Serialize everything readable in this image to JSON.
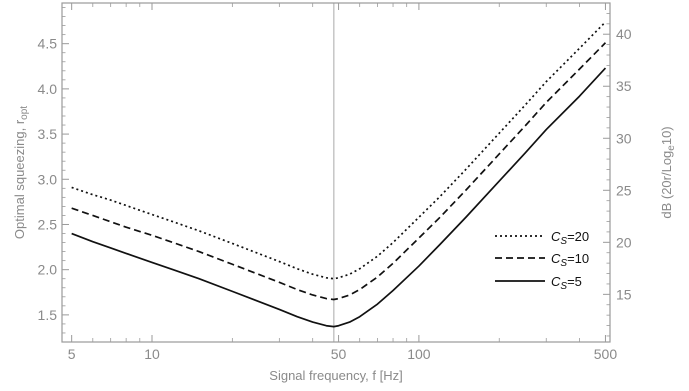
{
  "chart_data": {
    "type": "line",
    "xlabel": "Signal frequency, f [Hz]",
    "ylabel": "Optimal squeezing, r",
    "ylabel_sub": "opt",
    "y2label": "dB (20r/Log",
    "y2label_sub": "e",
    "y2label_tail": "10)",
    "x_scale": "log",
    "xlim": [
      4.6,
      520
    ],
    "ylim": [
      1.2,
      4.95
    ],
    "y2lim": [
      10.42,
      43.0
    ],
    "x_ticks": [
      5,
      10,
      50,
      100,
      500
    ],
    "x_tick_labels": [
      "5",
      "10",
      "50",
      "100",
      "500"
    ],
    "y_ticks": [
      1.5,
      2.0,
      2.5,
      3.0,
      3.5,
      4.0,
      4.5
    ],
    "y_tick_labels": [
      "1.5",
      "2.0",
      "2.5",
      "3.0",
      "3.5",
      "4.0",
      "4.5"
    ],
    "y2_ticks": [
      15,
      20,
      25,
      30,
      35,
      40
    ],
    "y2_tick_labels": [
      "15",
      "20",
      "25",
      "30",
      "35",
      "40"
    ],
    "vline_x": 48,
    "legend_position": "right",
    "series": [
      {
        "name": "C_S=20",
        "label_main": "C",
        "label_sub": "S",
        "label_val": "=20",
        "dash": "dotted",
        "x": [
          5,
          6,
          7,
          8,
          10,
          12,
          15,
          20,
          25,
          30,
          35,
          40,
          45,
          48,
          50,
          55,
          60,
          70,
          80,
          100,
          120,
          150,
          200,
          250,
          300,
          400,
          500
        ],
        "y": [
          2.91,
          2.83,
          2.77,
          2.71,
          2.61,
          2.53,
          2.43,
          2.29,
          2.18,
          2.09,
          2.01,
          1.95,
          1.91,
          1.9,
          1.91,
          1.95,
          2.01,
          2.15,
          2.3,
          2.58,
          2.81,
          3.11,
          3.51,
          3.82,
          4.08,
          4.45,
          4.74
        ]
      },
      {
        "name": "C_S=10",
        "label_main": "C",
        "label_sub": "S",
        "label_val": "=10",
        "dash": "dashed",
        "x": [
          5,
          6,
          7,
          8,
          10,
          12,
          15,
          20,
          25,
          30,
          35,
          40,
          45,
          48,
          50,
          55,
          60,
          70,
          80,
          100,
          120,
          150,
          200,
          250,
          300,
          400,
          500
        ],
        "y": [
          2.68,
          2.6,
          2.53,
          2.47,
          2.38,
          2.3,
          2.2,
          2.06,
          1.95,
          1.86,
          1.78,
          1.72,
          1.68,
          1.67,
          1.68,
          1.72,
          1.78,
          1.92,
          2.07,
          2.35,
          2.58,
          2.88,
          3.28,
          3.59,
          3.85,
          4.22,
          4.51
        ]
      },
      {
        "name": "C_S=5",
        "label_main": "C",
        "label_sub": "S",
        "label_val": "=5",
        "dash": "solid",
        "x": [
          5,
          6,
          7,
          8,
          10,
          12,
          15,
          20,
          25,
          30,
          35,
          40,
          45,
          48,
          50,
          55,
          60,
          70,
          80,
          100,
          120,
          150,
          200,
          250,
          300,
          400,
          500
        ],
        "y": [
          2.4,
          2.31,
          2.24,
          2.18,
          2.08,
          2.0,
          1.9,
          1.76,
          1.65,
          1.56,
          1.48,
          1.42,
          1.38,
          1.37,
          1.38,
          1.42,
          1.48,
          1.62,
          1.77,
          2.04,
          2.28,
          2.58,
          2.98,
          3.29,
          3.55,
          3.92,
          4.23
        ]
      }
    ],
    "colors": {
      "line": "#111111",
      "frame": "#9a9a9a",
      "vline": "#bdbdbd",
      "text": "#8a8a8a"
    }
  }
}
